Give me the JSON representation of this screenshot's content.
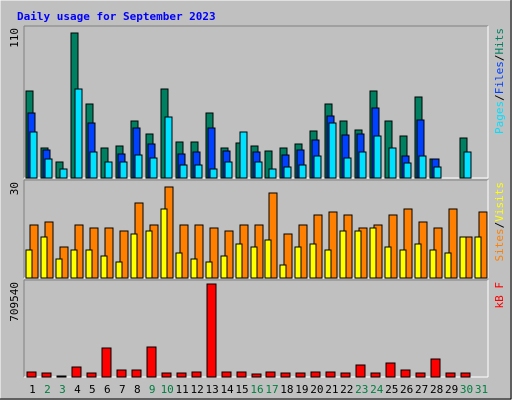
{
  "title": "Daily usage for September 2023",
  "colors": {
    "background": "#c0c0c0",
    "pages": "#00e0ff",
    "files": "#0040ff",
    "hits": "#008060",
    "visits": "#ffff00",
    "sites": "#ff8000",
    "kbytes": "#ff0000",
    "title": "#0000ff",
    "weekend": "#008040",
    "weekday": "#000000"
  },
  "chart_data": [
    {
      "type": "bar",
      "panel": "hits-files-pages",
      "ymax_label": "110",
      "ylim": [
        0,
        110
      ],
      "legend": [
        {
          "label": "Pages",
          "color": "#00e0ff"
        },
        {
          "label": "Files",
          "color": "#0040ff"
        },
        {
          "label": "Hits",
          "color": "#008060"
        }
      ],
      "separator": "/",
      "categories": [
        1,
        2,
        3,
        4,
        5,
        6,
        7,
        8,
        9,
        10,
        11,
        12,
        13,
        14,
        15,
        16,
        17,
        18,
        19,
        20,
        21,
        22,
        23,
        24,
        25,
        26,
        27,
        28,
        29,
        30,
        31
      ],
      "series": [
        {
          "name": "Hits",
          "values": [
            65,
            22,
            12,
            108,
            55,
            22,
            24,
            42,
            33,
            66,
            27,
            27,
            48,
            22,
            26,
            24,
            20,
            22,
            25,
            35,
            55,
            42,
            36,
            65,
            42,
            31,
            60,
            14,
            0,
            30,
            0
          ]
        },
        {
          "name": "Files",
          "values": [
            48,
            21,
            0,
            0,
            41,
            0,
            18,
            37,
            25,
            0,
            18,
            19,
            37,
            20,
            0,
            19,
            0,
            17,
            21,
            28,
            46,
            32,
            33,
            52,
            0,
            16,
            43,
            14,
            0,
            0,
            0
          ]
        },
        {
          "name": "Pages",
          "values": [
            34,
            14,
            7,
            66,
            19,
            12,
            12,
            17,
            15,
            45,
            10,
            10,
            7,
            12,
            34,
            12,
            7,
            8,
            10,
            16,
            41,
            15,
            19,
            31,
            22,
            11,
            16,
            8,
            0,
            19,
            0
          ]
        }
      ]
    },
    {
      "type": "bar",
      "panel": "sites-visits",
      "ymax_label": "30",
      "ylim": [
        0,
        30
      ],
      "legend": [
        {
          "label": "Sites",
          "color": "#ff8000"
        },
        {
          "label": "Visits",
          "color": "#ffff00"
        }
      ],
      "separator": "/",
      "categories": [
        1,
        2,
        3,
        4,
        5,
        6,
        7,
        8,
        9,
        10,
        11,
        12,
        13,
        14,
        15,
        16,
        17,
        18,
        19,
        20,
        21,
        22,
        23,
        24,
        25,
        26,
        27,
        28,
        29,
        30,
        31
      ],
      "series": [
        {
          "name": "Sites",
          "values": [
            17,
            18,
            10,
            17,
            16,
            16,
            15,
            24,
            17,
            29,
            17,
            17,
            16,
            15,
            17,
            17,
            27,
            14,
            17,
            20,
            21,
            20,
            16,
            17,
            20,
            22,
            18,
            16,
            22,
            13,
            21
          ]
        },
        {
          "name": "Visits",
          "values": [
            9,
            13,
            6,
            9,
            9,
            7,
            5,
            14,
            15,
            22,
            8,
            6,
            5,
            7,
            11,
            10,
            12,
            4,
            10,
            11,
            9,
            15,
            15,
            16,
            10,
            9,
            11,
            9,
            8,
            13,
            13
          ]
        }
      ]
    },
    {
      "type": "bar",
      "panel": "kbytes",
      "ymax_label": "709540",
      "ylim": [
        0,
        709540
      ],
      "legend": [
        {
          "label": "kB F",
          "color": "#ff0000"
        }
      ],
      "categories": [
        1,
        2,
        3,
        4,
        5,
        6,
        7,
        8,
        9,
        10,
        11,
        12,
        13,
        14,
        15,
        16,
        17,
        18,
        19,
        20,
        21,
        22,
        23,
        24,
        25,
        26,
        27,
        28,
        29,
        30,
        31
      ],
      "series": [
        {
          "name": "kB F",
          "values": [
            40000,
            30000,
            10000,
            80000,
            30000,
            220000,
            50000,
            50000,
            230000,
            30000,
            30000,
            40000,
            709540,
            40000,
            40000,
            25000,
            35000,
            30000,
            30000,
            40000,
            40000,
            30000,
            90000,
            30000,
            110000,
            50000,
            30000,
            140000,
            30000,
            30000,
            0
          ]
        }
      ]
    }
  ],
  "x_labels": [
    {
      "text": "1",
      "weekend": false
    },
    {
      "text": "2",
      "weekend": true
    },
    {
      "text": "3",
      "weekend": true
    },
    {
      "text": "4",
      "weekend": false
    },
    {
      "text": "5",
      "weekend": false
    },
    {
      "text": "6",
      "weekend": false
    },
    {
      "text": "7",
      "weekend": false
    },
    {
      "text": "8",
      "weekend": false
    },
    {
      "text": "9",
      "weekend": true
    },
    {
      "text": "10",
      "weekend": true
    },
    {
      "text": "11",
      "weekend": false
    },
    {
      "text": "12",
      "weekend": false
    },
    {
      "text": "13",
      "weekend": false
    },
    {
      "text": "14",
      "weekend": false
    },
    {
      "text": "15",
      "weekend": false
    },
    {
      "text": "16",
      "weekend": true
    },
    {
      "text": "17",
      "weekend": true
    },
    {
      "text": "18",
      "weekend": false
    },
    {
      "text": "19",
      "weekend": false
    },
    {
      "text": "20",
      "weekend": false
    },
    {
      "text": "21",
      "weekend": false
    },
    {
      "text": "22",
      "weekend": false
    },
    {
      "text": "23",
      "weekend": true
    },
    {
      "text": "24",
      "weekend": true
    },
    {
      "text": "25",
      "weekend": false
    },
    {
      "text": "26",
      "weekend": false
    },
    {
      "text": "27",
      "weekend": false
    },
    {
      "text": "28",
      "weekend": false
    },
    {
      "text": "29",
      "weekend": false
    },
    {
      "text": "30",
      "weekend": true
    },
    {
      "text": "31",
      "weekend": true
    }
  ]
}
